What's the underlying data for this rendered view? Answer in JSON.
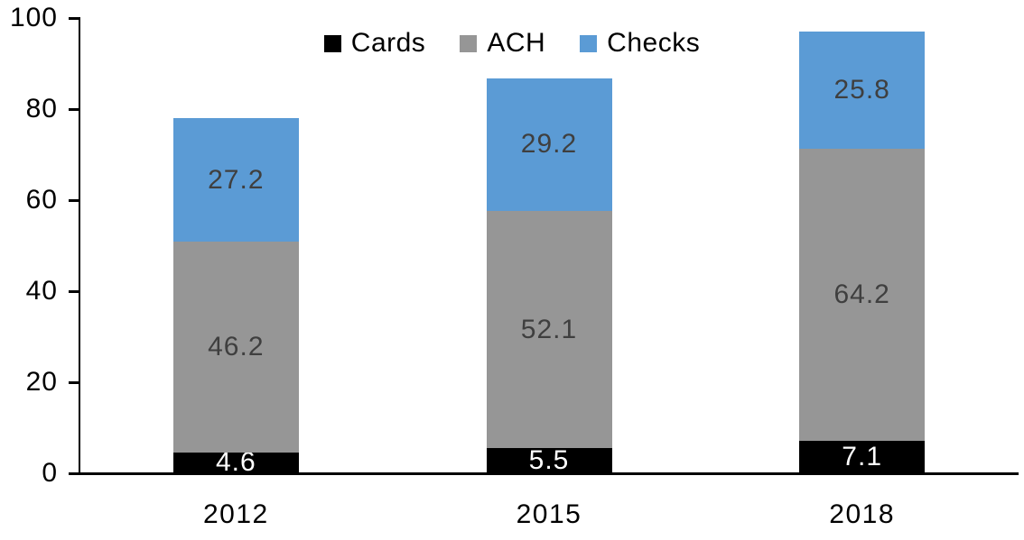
{
  "chart_data": {
    "type": "bar",
    "subtype": "stacked-column",
    "title": "",
    "categories": [
      "2012",
      "2015",
      "2018"
    ],
    "series": [
      {
        "name": "Cards",
        "color": "#000000",
        "label_color": "#FFFFFF",
        "values": [
          4.6,
          5.5,
          7.1
        ]
      },
      {
        "name": "ACH",
        "color": "#969696",
        "label_color": "#3F3F3F",
        "values": [
          46.2,
          52.1,
          64.2
        ]
      },
      {
        "name": "Checks",
        "color": "#5B9BD5",
        "label_color": "#3F3F3F",
        "values": [
          27.2,
          29.2,
          25.8
        ]
      }
    ],
    "ylim": [
      0,
      100
    ],
    "yticks": [
      0,
      20,
      40,
      60,
      80,
      100
    ],
    "grid": false,
    "legend_position": "top-center",
    "axis_color": "#000000",
    "background": "#FFFFFF"
  }
}
